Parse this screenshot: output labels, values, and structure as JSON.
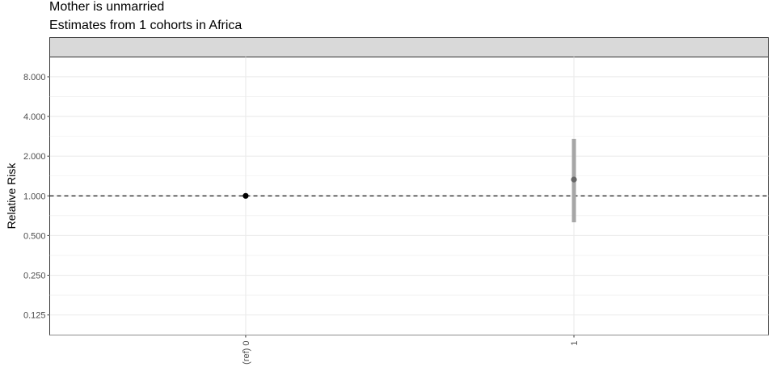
{
  "chart_data": {
    "type": "scatter",
    "title": "Mother is unmarried",
    "subtitle": "Estimates from 1 cohorts in Africa",
    "facet_label": "",
    "ylabel": "Relative Risk",
    "xlabel": "",
    "y_scale": "log2",
    "ylim": [
      0.088,
      11.3
    ],
    "yticks": [
      0.125,
      0.25,
      0.5,
      1,
      2,
      4,
      8
    ],
    "ytick_labels": [
      "0.125",
      "0.250",
      "0.500",
      "1.000",
      "2.000",
      "4.000",
      "8.000"
    ],
    "categories": [
      "(ref) 0",
      "1"
    ],
    "points": [
      {
        "category": "(ref) 0",
        "estimate": 1.0,
        "lower": null,
        "upper": null,
        "color": "#000000"
      },
      {
        "category": "1",
        "estimate": 1.33,
        "lower": 0.63,
        "upper": 2.7,
        "color": "#666666"
      }
    ],
    "reference_line": 1.0,
    "ci_color": "#a6a6a6",
    "grid": true,
    "colors": {
      "panel_border": "#333333",
      "strip_fill": "#d9d9d9",
      "grid": "#ebebeb"
    }
  }
}
